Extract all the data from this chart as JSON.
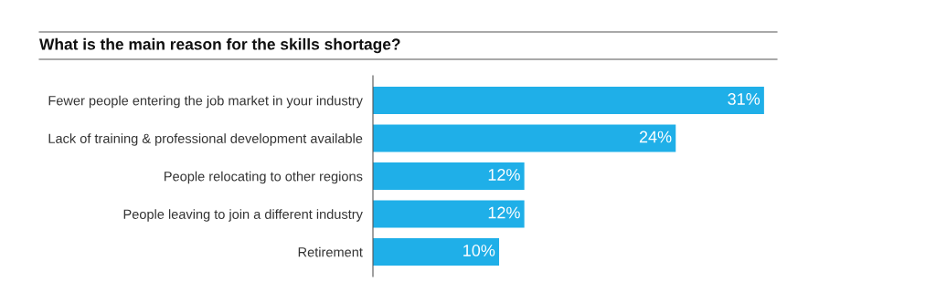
{
  "chart_data": {
    "type": "bar",
    "orientation": "horizontal",
    "title": "What is the main reason for the skills shortage?",
    "categories": [
      "Fewer people entering the job market in your industry",
      "Lack of training & professional development available",
      "People relocating to other regions",
      "People leaving to join a different industry",
      "Retirement"
    ],
    "values": [
      31,
      24,
      12,
      12,
      10
    ],
    "value_labels": [
      "31%",
      "24%",
      "12%",
      "12%",
      "10%"
    ],
    "color": "#1fafe8",
    "grid": false,
    "legend": false
  }
}
